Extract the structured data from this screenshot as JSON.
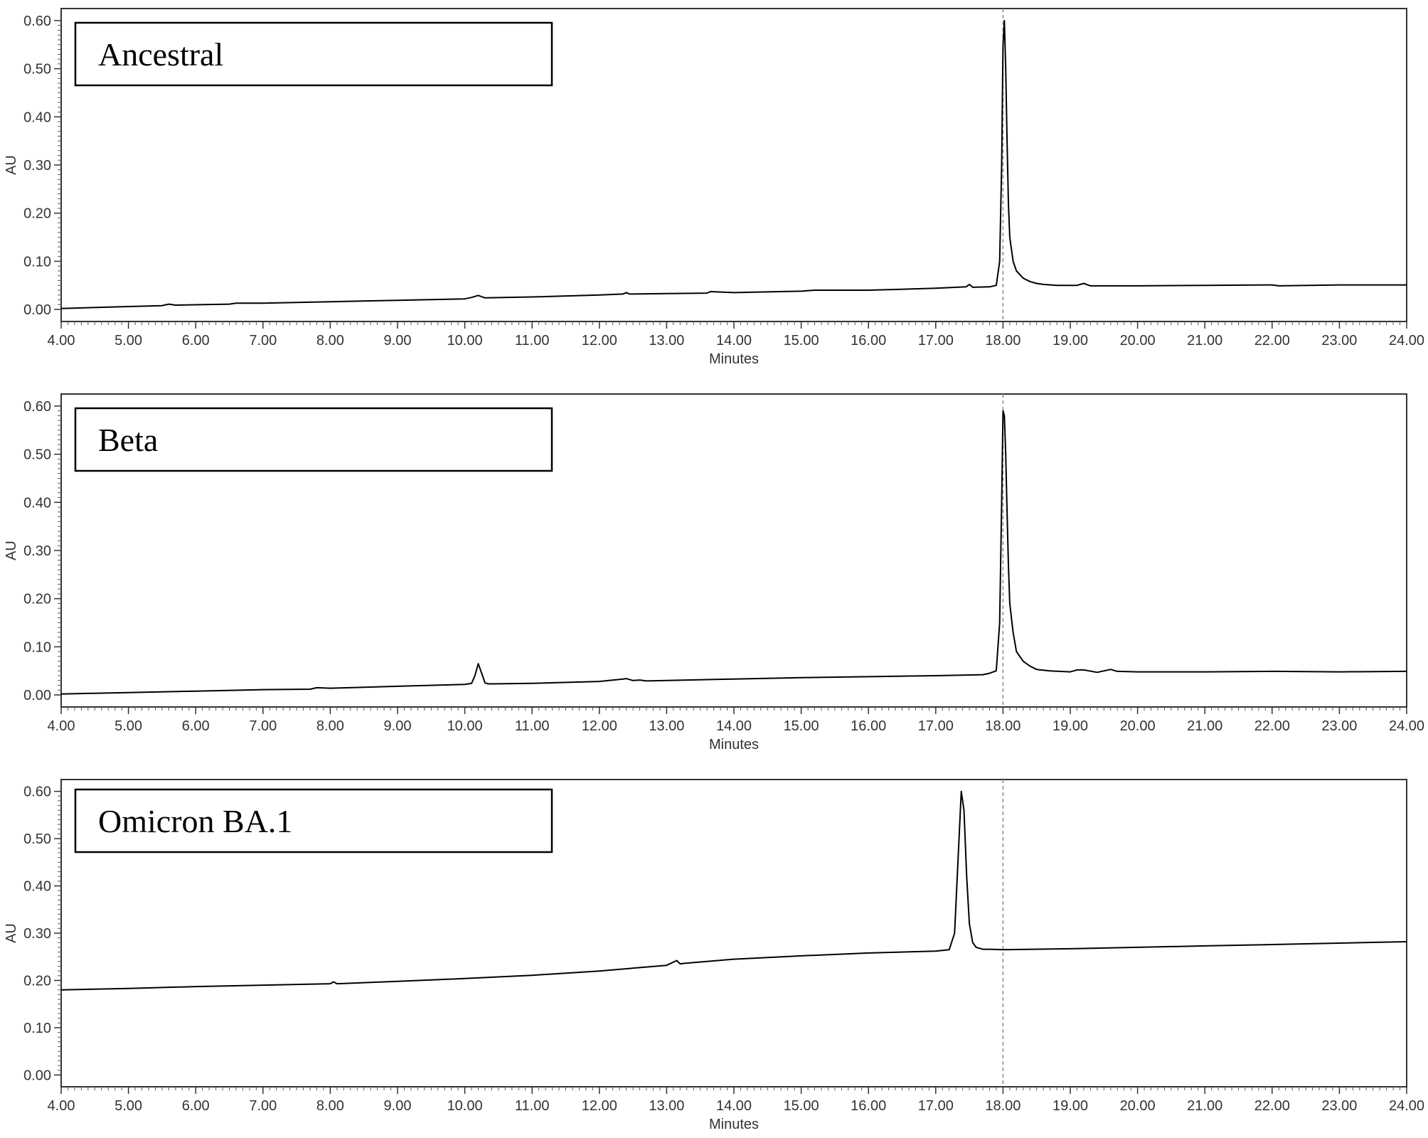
{
  "chart_data": [
    {
      "type": "line",
      "panel_label": "Ancestral",
      "xlabel": "Minutes",
      "ylabel": "AU",
      "xlim": [
        4.0,
        24.0
      ],
      "ylim": [
        -0.025,
        0.625
      ],
      "xticks": [
        "4.00",
        "5.00",
        "6.00",
        "7.00",
        "8.00",
        "9.00",
        "10.00",
        "11.00",
        "12.00",
        "13.00",
        "14.00",
        "15.00",
        "16.00",
        "17.00",
        "18.00",
        "19.00",
        "20.00",
        "21.00",
        "22.00",
        "23.00",
        "24.00"
      ],
      "yticks": [
        "0.00",
        "0.10",
        "0.20",
        "0.30",
        "0.40",
        "0.50",
        "0.60"
      ],
      "reference_line_x": 18.0,
      "series": [
        {
          "x": [
            4.0,
            5.0,
            5.5,
            5.6,
            5.7,
            6.5,
            6.6,
            7.0,
            8.0,
            9.0,
            10.0,
            10.1,
            10.2,
            10.3,
            11.0,
            12.0,
            12.35,
            12.4,
            12.45,
            13.0,
            13.6,
            13.65,
            14.0,
            15.0,
            15.2,
            16.0,
            17.0,
            17.45,
            17.5,
            17.55,
            17.8,
            17.9,
            17.95,
            17.98,
            18.0,
            18.02,
            18.04,
            18.06,
            18.08,
            18.1,
            18.15,
            18.2,
            18.3,
            18.4,
            18.5,
            18.6,
            18.8,
            19.1,
            19.2,
            19.3,
            20.0,
            21.0,
            22.0,
            22.1,
            23.0,
            24.0
          ],
          "y": [
            0.002,
            0.006,
            0.008,
            0.011,
            0.009,
            0.011,
            0.013,
            0.013,
            0.016,
            0.019,
            0.022,
            0.025,
            0.029,
            0.024,
            0.026,
            0.03,
            0.032,
            0.035,
            0.032,
            0.033,
            0.034,
            0.037,
            0.035,
            0.038,
            0.04,
            0.04,
            0.044,
            0.047,
            0.052,
            0.046,
            0.047,
            0.05,
            0.1,
            0.3,
            0.55,
            0.6,
            0.5,
            0.35,
            0.22,
            0.15,
            0.1,
            0.08,
            0.065,
            0.058,
            0.054,
            0.052,
            0.05,
            0.05,
            0.054,
            0.049,
            0.049,
            0.05,
            0.051,
            0.049,
            0.051,
            0.051
          ]
        }
      ]
    },
    {
      "type": "line",
      "panel_label": "Beta",
      "xlabel": "Minutes",
      "ylabel": "AU",
      "xlim": [
        4.0,
        24.0
      ],
      "ylim": [
        -0.025,
        0.625
      ],
      "xticks": [
        "4.00",
        "5.00",
        "6.00",
        "7.00",
        "8.00",
        "9.00",
        "10.00",
        "11.00",
        "12.00",
        "13.00",
        "14.00",
        "15.00",
        "16.00",
        "17.00",
        "18.00",
        "19.00",
        "20.00",
        "21.00",
        "22.00",
        "23.00",
        "24.00"
      ],
      "yticks": [
        "0.00",
        "0.10",
        "0.20",
        "0.30",
        "0.40",
        "0.50",
        "0.60"
      ],
      "reference_line_x": 18.0,
      "series": [
        {
          "x": [
            4.0,
            5.0,
            6.0,
            7.0,
            7.7,
            7.8,
            8.0,
            9.0,
            10.0,
            10.1,
            10.15,
            10.2,
            10.25,
            10.3,
            10.35,
            10.4,
            11.0,
            12.0,
            12.35,
            12.4,
            12.5,
            12.6,
            12.7,
            13.0,
            14.0,
            15.0,
            16.0,
            17.0,
            17.7,
            17.8,
            17.9,
            17.95,
            17.98,
            18.0,
            18.02,
            18.04,
            18.06,
            18.08,
            18.1,
            18.15,
            18.2,
            18.3,
            18.4,
            18.5,
            18.7,
            19.0,
            19.1,
            19.2,
            19.4,
            19.6,
            19.7,
            20.0,
            21.0,
            22.0,
            23.0,
            24.0
          ],
          "y": [
            0.002,
            0.005,
            0.008,
            0.011,
            0.012,
            0.015,
            0.014,
            0.018,
            0.022,
            0.024,
            0.04,
            0.065,
            0.045,
            0.025,
            0.023,
            0.023,
            0.024,
            0.028,
            0.033,
            0.034,
            0.03,
            0.031,
            0.029,
            0.03,
            0.033,
            0.036,
            0.038,
            0.04,
            0.042,
            0.045,
            0.05,
            0.15,
            0.4,
            0.59,
            0.58,
            0.5,
            0.38,
            0.27,
            0.19,
            0.13,
            0.09,
            0.07,
            0.06,
            0.053,
            0.05,
            0.048,
            0.052,
            0.052,
            0.047,
            0.053,
            0.049,
            0.048,
            0.048,
            0.049,
            0.048,
            0.049
          ]
        }
      ]
    },
    {
      "type": "line",
      "panel_label": "Omicron BA.1",
      "xlabel": "Minutes",
      "ylabel": "AU",
      "xlim": [
        4.0,
        24.0
      ],
      "ylim": [
        -0.025,
        0.625
      ],
      "xticks": [
        "4.00",
        "5.00",
        "6.00",
        "7.00",
        "8.00",
        "9.00",
        "10.00",
        "11.00",
        "12.00",
        "13.00",
        "14.00",
        "15.00",
        "16.00",
        "17.00",
        "18.00",
        "19.00",
        "20.00",
        "21.00",
        "22.00",
        "23.00",
        "24.00"
      ],
      "yticks": [
        "0.00",
        "0.10",
        "0.20",
        "0.30",
        "0.40",
        "0.50",
        "0.60"
      ],
      "reference_line_x": 18.0,
      "series": [
        {
          "x": [
            4.0,
            5.0,
            6.0,
            7.0,
            8.0,
            8.05,
            8.1,
            9.0,
            10.0,
            11.0,
            12.0,
            13.0,
            13.15,
            13.2,
            13.25,
            14.0,
            15.0,
            16.0,
            17.0,
            17.2,
            17.28,
            17.33,
            17.38,
            17.42,
            17.46,
            17.5,
            17.55,
            17.6,
            17.7,
            17.8,
            18.0,
            19.0,
            20.0,
            21.0,
            22.0,
            23.0,
            24.0
          ],
          "y": [
            0.18,
            0.183,
            0.187,
            0.19,
            0.193,
            0.197,
            0.193,
            0.198,
            0.204,
            0.211,
            0.22,
            0.232,
            0.242,
            0.235,
            0.236,
            0.245,
            0.252,
            0.258,
            0.262,
            0.265,
            0.3,
            0.45,
            0.6,
            0.56,
            0.42,
            0.32,
            0.28,
            0.27,
            0.266,
            0.266,
            0.265,
            0.267,
            0.27,
            0.273,
            0.276,
            0.279,
            0.282
          ]
        }
      ]
    }
  ]
}
